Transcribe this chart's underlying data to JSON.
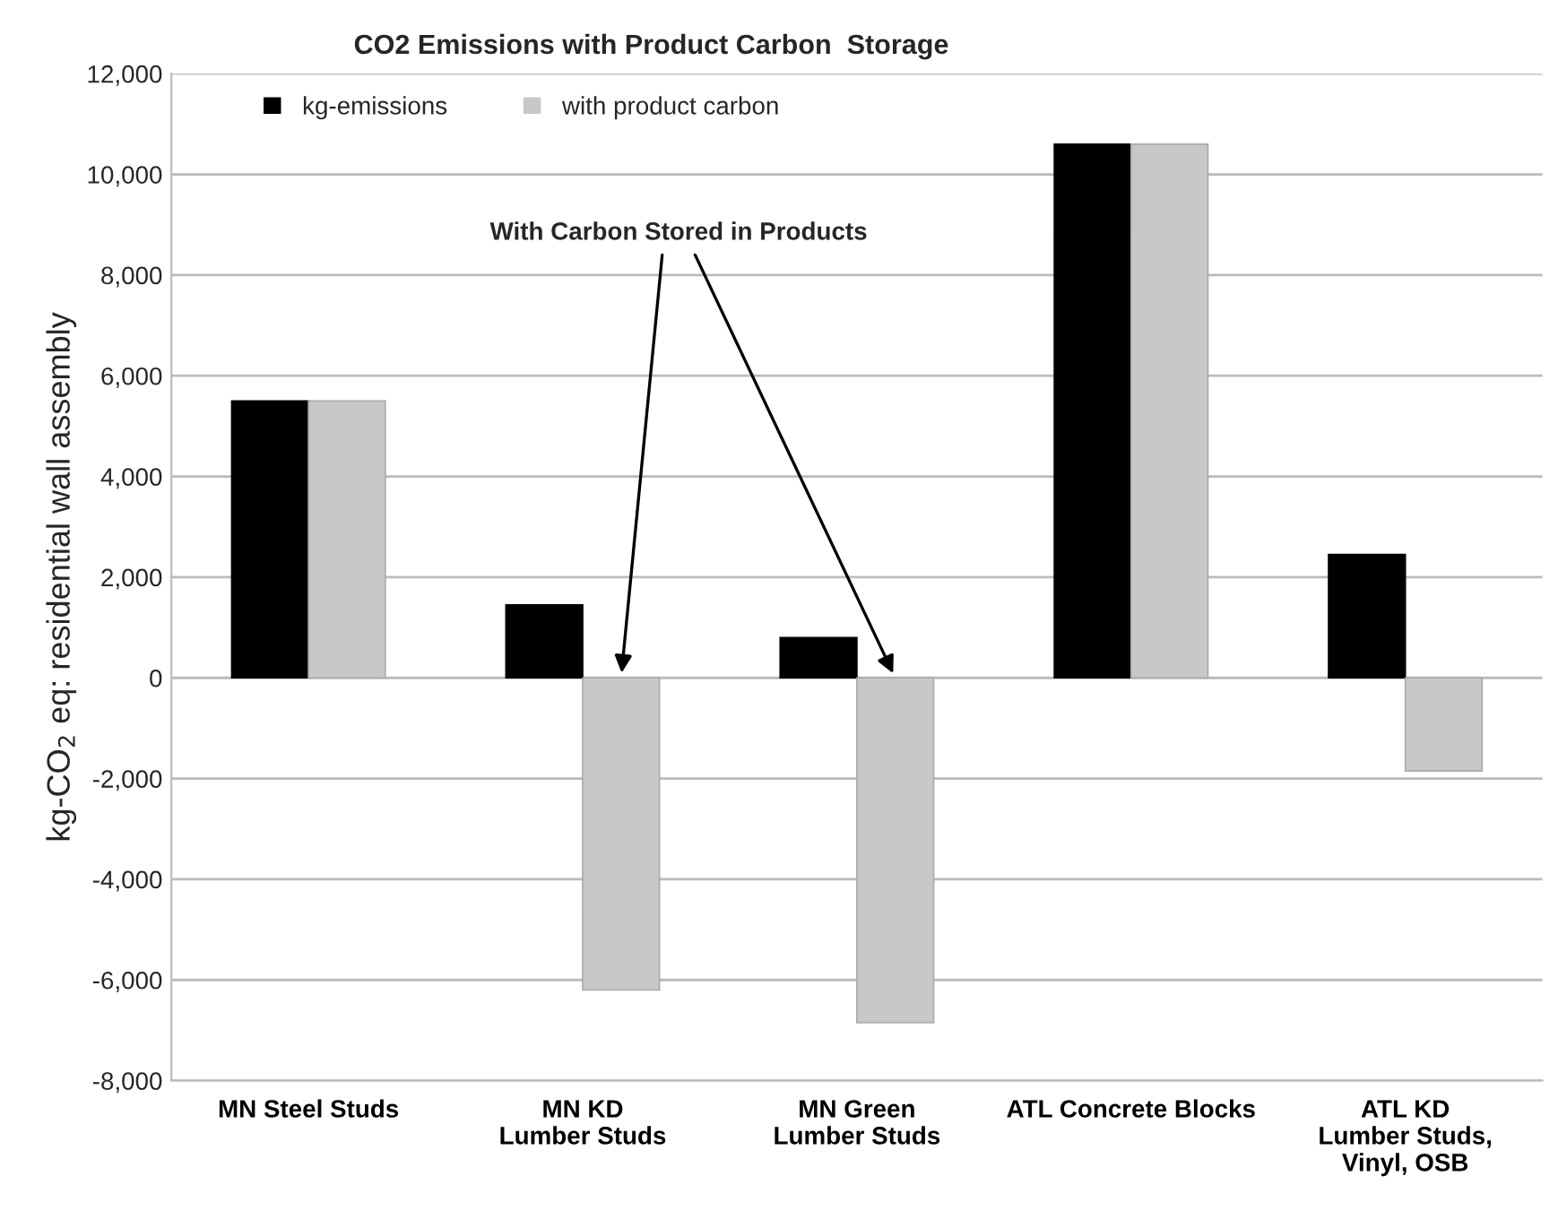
{
  "chart_data": {
    "type": "bar",
    "title": "CO2 Emissions with Product Carbon  Storage",
    "ylabel": "kg-CO$_{2}$ eq: residential wall assembly",
    "categories": [
      "MN Steel Studs",
      "MN KD\nLumber Studs",
      "MN Green\nLumber Studs",
      "ATL Concrete Blocks",
      "ATL KD\nLumber Studs,\nVinyl, OSB"
    ],
    "series": [
      {
        "name": "kg-emissions",
        "color": "#000000",
        "values": [
          5500,
          1450,
          800,
          10600,
          2450
        ]
      },
      {
        "name": "with product carbon",
        "color": "#c8c8c8",
        "values": [
          5500,
          -6200,
          -6850,
          10600,
          -1850
        ]
      }
    ],
    "annotations": [
      "With Carbon Stored in Products"
    ],
    "ylim": [
      -8000,
      12000
    ],
    "yticks": [
      {
        "value": -8000,
        "label": "-8,000"
      },
      {
        "value": -6000,
        "label": "-6,000"
      },
      {
        "value": -4000,
        "label": "-4,000"
      },
      {
        "value": -2000,
        "label": "-2,000"
      },
      0,
      {
        "value": 2000,
        "label": "2,000"
      },
      {
        "value": 4000,
        "label": "4,000"
      },
      {
        "value": 6000,
        "label": "6,000"
      },
      {
        "value": 8000,
        "label": "8,000"
      },
      {
        "value": 10000,
        "label": "10,000"
      },
      {
        "value": 12000,
        "label": "12,000"
      }
    ],
    "grid": "y",
    "legend": "top left"
  }
}
